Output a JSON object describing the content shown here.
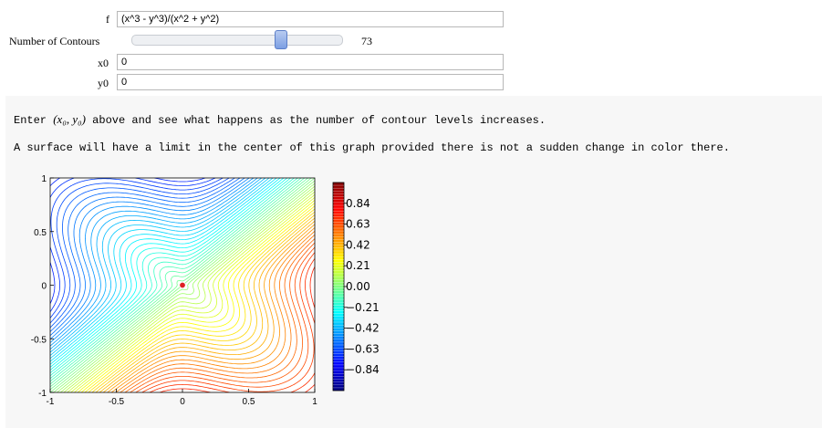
{
  "controls": {
    "f": {
      "label": "f",
      "value": "(x^3 - y^3)/(x^2 + y^2)"
    },
    "contours": {
      "label": "Number of Contours",
      "value": "73",
      "fraction": 0.72
    },
    "x0": {
      "label": "x0",
      "value": "0"
    },
    "y0": {
      "label": "y0",
      "value": "0"
    }
  },
  "output": {
    "line1_pre": "Enter",
    "line1_math": "(x₀, y₀)",
    "line1_post": "above and see what happens as the number of contour levels increases.",
    "line2": "A surface will have a limit in the center of this graph provided there is not a sudden change in color there."
  },
  "chart_data": {
    "type": "heatmap",
    "title": "",
    "xlabel": "",
    "ylabel": "",
    "xlim": [
      -1,
      1
    ],
    "ylim": [
      -1,
      1
    ],
    "x_ticks": [
      "-1",
      "-0.5",
      "0",
      "0.5",
      "1"
    ],
    "y_ticks": [
      "1",
      "0.5",
      "0",
      "-0.5",
      "-1"
    ],
    "function": "(x^3 - y^3)/(x^2 + y^2)",
    "contour_levels": 73,
    "point": {
      "x": 0,
      "y": 0,
      "color": "#dd2222"
    },
    "colormap": "jet",
    "colorbar_ticks": [
      "0.84",
      "0.63",
      "0.42",
      "0.21",
      "0.00",
      "−0.21",
      "−0.42",
      "−0.63",
      "−0.84"
    ]
  }
}
